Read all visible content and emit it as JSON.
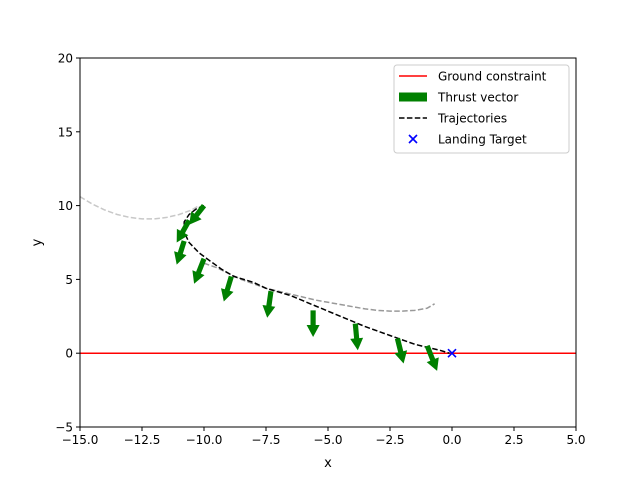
{
  "chart_data": {
    "type": "line",
    "xlabel": "x",
    "ylabel": "y",
    "xlim": [
      -15,
      5
    ],
    "ylim": [
      -5,
      20
    ],
    "xticks": [
      -15.0,
      -12.5,
      -10.0,
      -7.5,
      -5.0,
      -2.5,
      0.0,
      2.5,
      5.0
    ],
    "xtick_labels": [
      "−15.0",
      "−12.5",
      "−10.0",
      "−7.5",
      "−5.0",
      "−2.5",
      "0.0",
      "2.5",
      "5.0"
    ],
    "yticks": [
      -5,
      0,
      5,
      10,
      15,
      20
    ],
    "ytick_labels": [
      "−5",
      "0",
      "5",
      "10",
      "15",
      "20"
    ],
    "grid": false,
    "legend_position": "top-right",
    "legend": [
      {
        "label": "Ground constraint",
        "kind": "line",
        "color": "#ff0000"
      },
      {
        "label": "Thrust vector",
        "kind": "patch",
        "color": "#008000"
      },
      {
        "label": "Trajectories",
        "kind": "dashed",
        "color": "#000000"
      },
      {
        "label": "Landing Target",
        "kind": "x",
        "color": "#0000ff"
      }
    ],
    "ground_constraint": {
      "y": 0,
      "color": "#ff0000"
    },
    "landing_target": {
      "x": 0,
      "y": 0,
      "color": "#0000ff"
    },
    "series": [
      {
        "color": "#c8c8c8",
        "style": "dashed",
        "x": [
          -15.0,
          -14.5,
          -14.0,
          -13.5,
          -13.0,
          -12.5,
          -12.0,
          -11.5,
          -11.0,
          -10.5,
          -10.2
        ],
        "y": [
          10.6,
          10.1,
          9.7,
          9.4,
          9.2,
          9.1,
          9.1,
          9.2,
          9.4,
          9.7,
          10.0
        ]
      },
      {
        "color": "#999999",
        "style": "dashed",
        "x": [
          -10.0,
          -9.5,
          -9.0,
          -8.5,
          -8.0,
          -7.5,
          -7.0,
          -6.5,
          -6.0,
          -5.5,
          -5.0,
          -4.5,
          -4.0,
          -3.5,
          -3.0,
          -2.5,
          -2.0,
          -1.5,
          -1.0,
          -0.7
        ],
        "y": [
          6.1,
          5.8,
          5.4,
          5.0,
          4.7,
          4.4,
          4.2,
          4.0,
          3.8,
          3.6,
          3.45,
          3.3,
          3.15,
          3.0,
          2.9,
          2.85,
          2.85,
          2.9,
          3.05,
          3.35
        ]
      },
      {
        "color": "#000000",
        "style": "dashed",
        "x": [
          -10.0,
          -10.3,
          -10.6,
          -10.8,
          -10.8,
          -10.6,
          -10.2,
          -9.8,
          -9.3,
          -8.8,
          -8.0,
          -7.5,
          -6.5,
          -5.5,
          -4.5,
          -3.5,
          -2.5,
          -1.5,
          -1.0,
          -0.5,
          -0.1
        ],
        "y": [
          10.0,
          9.8,
          9.4,
          8.9,
          8.2,
          7.5,
          6.8,
          6.3,
          5.7,
          5.2,
          4.8,
          4.4,
          3.9,
          3.2,
          2.5,
          1.8,
          1.2,
          0.6,
          0.4,
          0.2,
          0.0
        ]
      }
    ],
    "thrust_vectors": [
      {
        "x": -10.0,
        "y": 10.0,
        "dx": -0.6,
        "dy": -1.3
      },
      {
        "x": -10.6,
        "y": 9.0,
        "dx": -0.5,
        "dy": -1.5
      },
      {
        "x": -10.8,
        "y": 7.6,
        "dx": -0.3,
        "dy": -1.6
      },
      {
        "x": -10.0,
        "y": 6.4,
        "dx": -0.4,
        "dy": -1.7
      },
      {
        "x": -8.9,
        "y": 5.2,
        "dx": -0.3,
        "dy": -1.7
      },
      {
        "x": -7.3,
        "y": 4.2,
        "dx": -0.15,
        "dy": -1.8
      },
      {
        "x": -5.6,
        "y": 2.9,
        "dx": 0.0,
        "dy": -1.8
      },
      {
        "x": -3.9,
        "y": 2.0,
        "dx": 0.1,
        "dy": -1.8
      },
      {
        "x": -2.2,
        "y": 1.0,
        "dx": 0.25,
        "dy": -1.7
      },
      {
        "x": -1.0,
        "y": 0.5,
        "dx": 0.4,
        "dy": -1.7
      }
    ]
  }
}
